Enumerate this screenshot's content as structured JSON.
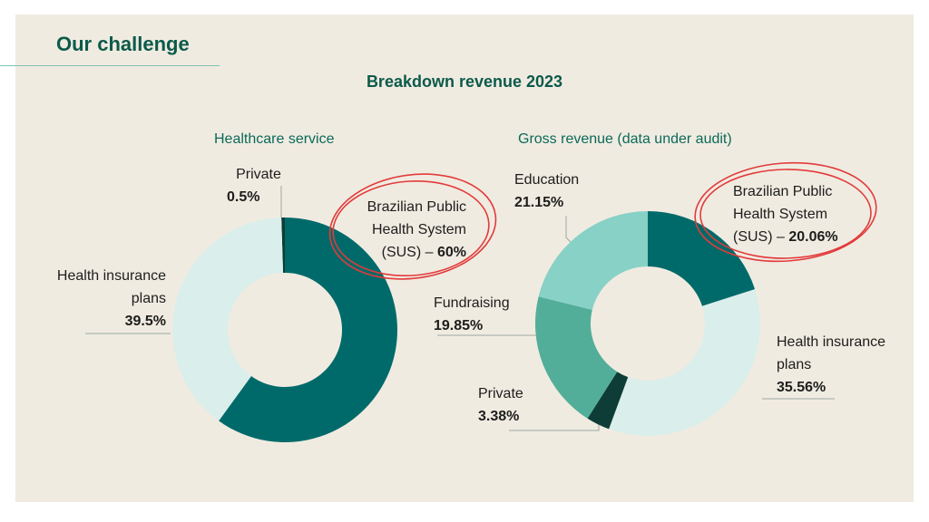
{
  "page_title": "Our challenge",
  "chart_data": [
    {
      "type": "pie",
      "title": "Breakdown revenue 2023",
      "subtitle": "Healthcare service",
      "labels": [
        "Private",
        "Brazilian Public Health System (SUS)",
        "Health insurance plans"
      ],
      "values": [
        0.5,
        60,
        39.5
      ],
      "colors": [
        "#0d3d36",
        "#006a6a",
        "#daeeeb"
      ],
      "label_lines": {
        "private": [
          "Private",
          "0.5%"
        ],
        "sus": [
          "Brazilian Public",
          "Health System",
          "(SUS) – ",
          "60%"
        ],
        "health": [
          "Health insurance",
          "plans",
          "39.5%"
        ]
      }
    },
    {
      "type": "pie",
      "subtitle": "Gross revenue (data under audit)",
      "labels": [
        "Brazilian Public Health System (SUS)",
        "Health insurance plans",
        "Private",
        "Fundraising",
        "Education"
      ],
      "values": [
        20.06,
        35.56,
        3.38,
        19.85,
        21.15
      ],
      "colors": [
        "#006a6a",
        "#daeeeb",
        "#0d3d36",
        "#52ae99",
        "#87d1c6"
      ],
      "label_lines": {
        "education": [
          "Education",
          "21.15%"
        ],
        "sus": [
          "Brazilian Public",
          "Health System",
          "(SUS) – ",
          "20.06%"
        ],
        "fundraising": [
          "Fundraising",
          "19.85%"
        ],
        "private": [
          "Private",
          "3.38%"
        ],
        "health": [
          "Health insurance",
          "plans",
          "35.56%"
        ]
      }
    }
  ],
  "colors": {
    "accent": "#0b5a4a",
    "highlight_circle": "#e23b3b",
    "background": "#f0ebe1"
  }
}
